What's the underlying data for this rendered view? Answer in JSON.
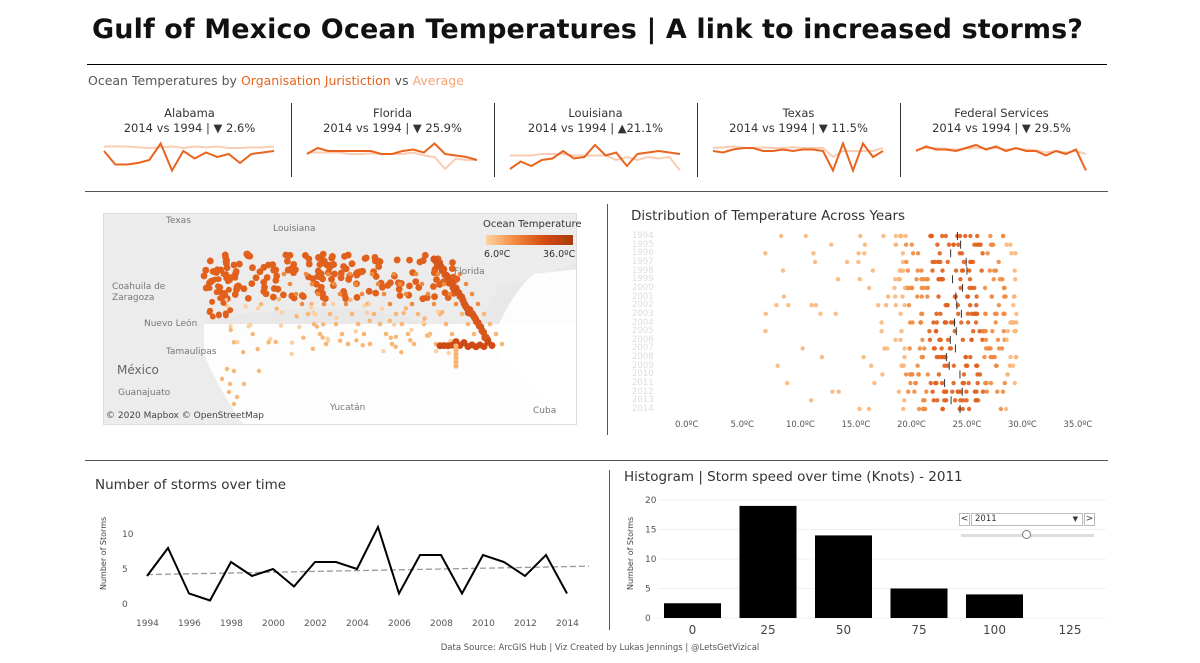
{
  "header": {
    "title": "Gulf of Mexico Ocean Temperatures | A link to increased storms?",
    "subtitle_prefix": "Ocean Temperatures by ",
    "subtitle_org": "Organisation Juristiction",
    "subtitle_vs": " vs ",
    "subtitle_avg": "Average"
  },
  "colors": {
    "org": "#e8641f",
    "avg": "#f4a477",
    "bars": "#000000"
  },
  "kpis": [
    {
      "state": "Alabama",
      "change": "2014 vs 1994 | ▼ 2.6%",
      "line": [
        0.3,
        0.75,
        0.75,
        0.7,
        0.6,
        0.05,
        0.95,
        0.3,
        0.55,
        0.35,
        0.5,
        0.4,
        0.7,
        0.4,
        0.35,
        0.3
      ],
      "avg": [
        0.15,
        0.15,
        0.15,
        0.18,
        0.2,
        0.18,
        0.15,
        0.2,
        0.15,
        0.18,
        0.15,
        0.2,
        0.2,
        0.18,
        0.18,
        0.15
      ]
    },
    {
      "state": "Florida",
      "change": "2014 vs 1994 | ▼ 25.9%",
      "line": [
        0.4,
        0.2,
        0.3,
        0.3,
        0.3,
        0.3,
        0.3,
        0.4,
        0.4,
        0.3,
        0.25,
        0.35,
        0.05,
        0.4,
        0.45,
        0.5,
        0.6
      ],
      "avg": [
        0.35,
        0.35,
        0.35,
        0.35,
        0.4,
        0.4,
        0.38,
        0.4,
        0.4,
        0.4,
        0.35,
        0.45,
        0.5,
        0.9,
        0.55,
        0.6,
        0.6
      ]
    },
    {
      "state": "Louisiana",
      "change": "2014 vs 1994 | ▲21.1%",
      "line": [
        0.9,
        0.65,
        0.8,
        0.6,
        0.55,
        0.3,
        0.55,
        0.5,
        0.1,
        0.45,
        0.35,
        0.8,
        0.4,
        0.35,
        0.3,
        0.35,
        0.4
      ],
      "avg": [
        0.45,
        0.45,
        0.45,
        0.4,
        0.4,
        0.4,
        0.45,
        0.45,
        0.45,
        0.45,
        0.6,
        0.5,
        0.6,
        0.5,
        0.55,
        0.5,
        0.95
      ]
    },
    {
      "state": "Texas",
      "change": "2014 vs 1994 | ▼ 11.5%",
      "line": [
        0.3,
        0.35,
        0.25,
        0.2,
        0.2,
        0.3,
        0.3,
        0.25,
        0.3,
        0.25,
        0.25,
        0.3,
        0.95,
        0.05,
        0.95,
        0.05,
        0.5,
        0.3
      ],
      "avg": [
        0.2,
        0.18,
        0.15,
        0.2,
        0.2,
        0.18,
        0.2,
        0.2,
        0.18,
        0.2,
        0.2,
        0.2,
        0.5,
        0.3,
        0.3,
        0.3,
        0.3,
        0.2
      ]
    },
    {
      "state": "Federal Services",
      "change": "2014 vs 1994 | ▼ 29.5%",
      "line": [
        0.3,
        0.15,
        0.25,
        0.25,
        0.3,
        0.2,
        0.1,
        0.25,
        0.15,
        0.3,
        0.2,
        0.3,
        0.3,
        0.45,
        0.3,
        0.4,
        0.25,
        0.95
      ],
      "avg": [
        0.25,
        0.2,
        0.2,
        0.22,
        0.25,
        0.22,
        0.2,
        0.22,
        0.2,
        0.25,
        0.22,
        0.25,
        0.28,
        0.35,
        0.3,
        0.35,
        0.3,
        0.4
      ]
    }
  ],
  "map": {
    "labels": {
      "texas": "Texas",
      "louisiana": "Louisiana",
      "florida": "Florida",
      "coahuila": "Coahuila de\nZaragoza",
      "nuevoleon": "Nuevo León",
      "tamaulipas": "Tamaulipas",
      "mexico": "México",
      "guanajuato": "Guanajuato",
      "yucatan": "Yucatán",
      "cuba": "Cuba"
    },
    "legend_title": "Ocean Temperature",
    "legend_min": "6.0ºC",
    "legend_max": "36.0ºC",
    "credit": "© 2020 Mapbox © OpenStreetMap"
  },
  "distribution": {
    "title": "Distribution of Temperature Across Years",
    "years": [
      "1994",
      "1995",
      "1996",
      "1997",
      "1998",
      "1999",
      "2000",
      "2001",
      "2002",
      "2003",
      "2004",
      "2005",
      "2006",
      "2007",
      "2008",
      "2009",
      "2010",
      "2011",
      "2012",
      "2013",
      "2014"
    ],
    "xticks": [
      "0.0ºC",
      "5.0ºC",
      "10.0ºC",
      "15.0ºC",
      "20.0ºC",
      "25.0ºC",
      "30.0ºC",
      "35.0ºC"
    ]
  },
  "chart_data": [
    {
      "type": "line",
      "title": "Number of storms over time",
      "ylabel": "Number of Storms",
      "x": [
        1994,
        1995,
        1996,
        1997,
        1998,
        1999,
        2000,
        2001,
        2002,
        2003,
        2004,
        2005,
        2006,
        2007,
        2008,
        2009,
        2010,
        2011,
        2012,
        2013,
        2014
      ],
      "values": [
        4,
        8,
        1.5,
        0.5,
        6,
        4,
        5,
        2.5,
        6,
        6,
        5,
        11,
        1.5,
        7,
        7,
        1.5,
        7,
        6,
        4,
        7,
        1.5
      ],
      "trend": [
        4.2,
        5.4
      ],
      "ylim": [
        0,
        12
      ],
      "yticks": [
        "0",
        "5",
        "10"
      ],
      "xticks": [
        "1994",
        "1996",
        "1998",
        "2000",
        "2002",
        "2004",
        "2006",
        "2008",
        "2010",
        "2012",
        "2014"
      ]
    },
    {
      "type": "bar",
      "title": "Histogram | Storm speed over time (Knots) - 2011",
      "ylabel": "Number of Storms",
      "categories": [
        "0",
        "25",
        "50",
        "75",
        "100",
        "125"
      ],
      "values": [
        2.5,
        19,
        14,
        5,
        4,
        0
      ],
      "ylim": [
        0,
        20
      ],
      "yticks": [
        "0",
        "5",
        "10",
        "15",
        "20"
      ]
    }
  ],
  "filter": {
    "selected": "2011",
    "prev": "<",
    "next": ">",
    "dropdown": "▼"
  },
  "footer": "Data Source: ArcGIS Hub | Viz Created by Lukas Jennings | @LetsGetVizical"
}
